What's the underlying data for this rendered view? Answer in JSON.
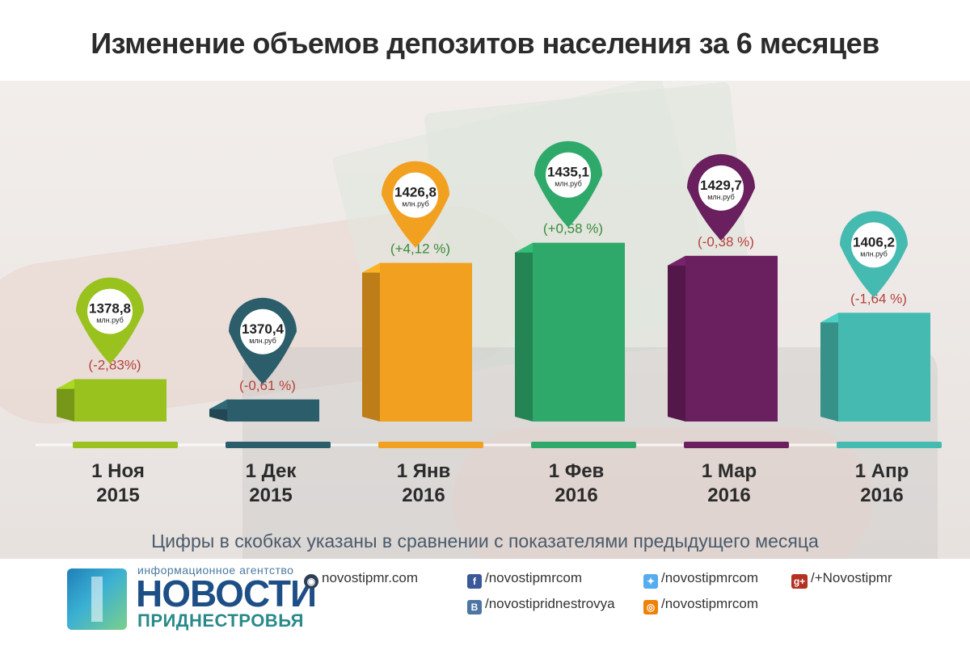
{
  "title": "Изменение объемов депозитов населения за 6 месяцев",
  "chart_data": {
    "type": "bar",
    "title": "Изменение объемов депозитов населения за 6 месяцев",
    "unit": "млн.руб",
    "categories": [
      "1 Ноя 2015",
      "1 Дек 2015",
      "1 Янв 2016",
      "1 Фев 2016",
      "1 Мар 2016",
      "1 Апр 2016"
    ],
    "category_lines": [
      [
        "1 Ноя",
        "2015"
      ],
      [
        "1 Дек",
        "2015"
      ],
      [
        "1 Янв",
        "2016"
      ],
      [
        "1 Фев",
        "2016"
      ],
      [
        "1 Мар",
        "2016"
      ],
      [
        "1 Апр",
        "2016"
      ]
    ],
    "values": [
      1378.8,
      1370.4,
      1426.8,
      1435.1,
      1429.7,
      1406.2
    ],
    "value_labels": [
      "1378,8",
      "1370,4",
      "1426,8",
      "1435,1",
      "1429,7",
      "1406,2"
    ],
    "changes": [
      "(-2,83%)",
      "(-0,61 %)",
      "(+4,12 %)",
      "(+0,58 %)",
      "(-0,38 %)",
      "(-1,64 %)"
    ],
    "change_colors": [
      "#b5413c",
      "#b5413c",
      "#3a8a3a",
      "#3a8a3a",
      "#b5413c",
      "#b5413c"
    ],
    "colors": [
      "#99c21f",
      "#2c5d6b",
      "#f2a01f",
      "#2fa96a",
      "#6a1f5e",
      "#45bab0"
    ],
    "ylim": [
      1350,
      1450
    ]
  },
  "footnote": "Цифры в скобках указаны в сравнении с показателями предыдущего месяца",
  "footer": {
    "logo_small": "информационное агентство",
    "logo_big": "НОВОСТИ",
    "logo_sub": "ПРИДНЕСТРОВЬЯ",
    "site": "novostipmr.com",
    "facebook": "/novostipmrcom",
    "twitter": "/novostipmrcom",
    "gplus": "/+Novostipmr",
    "vk": "/novostipridnestrovya",
    "ok": "/novostipmrcom",
    "icons": {
      "facebook": "f",
      "vk": "B",
      "gplus": "g+",
      "twitter": "bird-icon",
      "ok": "ok-icon",
      "site": "globe-icon"
    }
  }
}
